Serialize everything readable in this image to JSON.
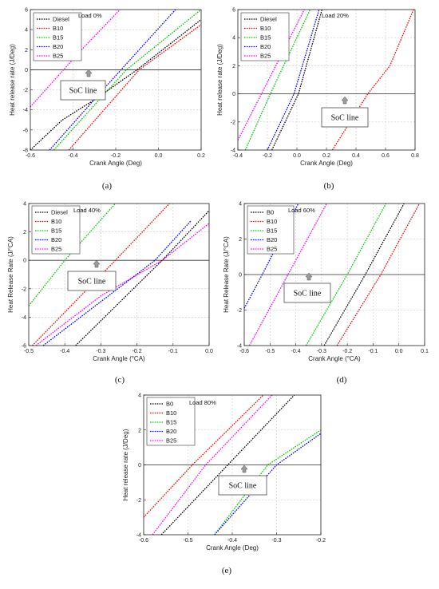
{
  "chart_data": [
    {
      "type": "line",
      "panel": "(a)",
      "title": "",
      "annotation": "Load 0%",
      "xlabel": "Crank Angle (Deg)",
      "ylabel": "Heat release rate (J/Deg)",
      "xlim": [
        -0.6,
        0.2
      ],
      "ylim": [
        -8,
        6
      ],
      "xticks": [
        -0.6,
        -0.4,
        -0.2,
        0.0,
        0.2
      ],
      "yticks": [
        -8,
        -6,
        -4,
        -2,
        0,
        2,
        4,
        6
      ],
      "xticklabels": [
        "-0.6",
        "-0.4",
        "-0.2",
        "0.0",
        "0.2"
      ],
      "yticklabels": [
        "-8",
        "-6",
        "-4",
        "-2",
        "0",
        "2",
        "4",
        "6"
      ],
      "grid": true,
      "legend": "top-left",
      "soc_label": "SoC line",
      "series": [
        {
          "name": "Diesel",
          "color": "#000000",
          "x": [
            -0.6,
            -0.45,
            -0.3,
            -0.1,
            0.2
          ],
          "y": [
            -8.0,
            -5.0,
            -3.0,
            0.0,
            5.0
          ]
        },
        {
          "name": "B10",
          "color": "#ff0000",
          "x": [
            -0.42,
            -0.09,
            0.2
          ],
          "y": [
            -8.0,
            0.0,
            4.5
          ]
        },
        {
          "name": "B15",
          "color": "#00cc00",
          "x": [
            -0.49,
            -0.15,
            0.2
          ],
          "y": [
            -8.0,
            0.0,
            6.0
          ]
        },
        {
          "name": "B20",
          "color": "#0000ff",
          "x": [
            -0.51,
            -0.26,
            0.08
          ],
          "y": [
            -8.0,
            -2.0,
            6.0
          ]
        },
        {
          "name": "B25",
          "color": "#ff00ff",
          "x": [
            -0.6,
            -0.36,
            -0.18
          ],
          "y": [
            -3.7,
            2.0,
            6.0
          ]
        }
      ]
    },
    {
      "type": "line",
      "panel": "(b)",
      "title": "",
      "annotation": "Load 20%",
      "xlabel": "Crank Angle (Deg)",
      "ylabel": "Heat release rate (J/Deg)",
      "xlim": [
        -0.4,
        0.8
      ],
      "ylim": [
        -4,
        6
      ],
      "xticks": [
        -0.4,
        -0.2,
        0.0,
        0.2,
        0.4,
        0.6,
        0.8
      ],
      "yticks": [
        -4,
        -2,
        0,
        2,
        4,
        6
      ],
      "xticklabels": [
        "-0.4",
        "-0.2",
        "0.0",
        "0.2",
        "0.4",
        "0.6",
        "0.8"
      ],
      "yticklabels": [
        "-4",
        "-2",
        "0",
        "2",
        "4",
        "6"
      ],
      "grid": true,
      "legend": "top-left",
      "soc_label": "SoC line",
      "series": [
        {
          "name": "Diesel",
          "color": "#000000",
          "x": [
            -0.17,
            0.01,
            0.17
          ],
          "y": [
            -4.0,
            0.0,
            6.0
          ]
        },
        {
          "name": "B10",
          "color": "#ff0000",
          "x": [
            0.24,
            0.48,
            0.63,
            0.79
          ],
          "y": [
            -4.0,
            0.0,
            2.0,
            6.0
          ]
        },
        {
          "name": "B15",
          "color": "#00cc00",
          "x": [
            -0.35,
            -0.18,
            0.09
          ],
          "y": [
            -4.0,
            0.0,
            6.0
          ]
        },
        {
          "name": "B20",
          "color": "#0000ff",
          "x": [
            -0.2,
            -0.02,
            0.15
          ],
          "y": [
            -4.0,
            0.0,
            6.0
          ]
        },
        {
          "name": "B25",
          "color": "#ff00ff",
          "x": [
            -0.4,
            -0.24,
            0.05
          ],
          "y": [
            -3.3,
            0.0,
            6.0
          ]
        }
      ]
    },
    {
      "type": "line",
      "panel": "(c)",
      "title": "",
      "annotation": "Load 40%",
      "xlabel": "Crank Angle (°CA)",
      "ylabel": "Heat Release Rate (J/°CA)",
      "xlim": [
        -0.5,
        0.0
      ],
      "ylim": [
        -6,
        4
      ],
      "xticks": [
        -0.5,
        -0.4,
        -0.3,
        -0.2,
        -0.1,
        0.0
      ],
      "yticks": [
        -6,
        -4,
        -2,
        0,
        2,
        4
      ],
      "xticklabels": [
        "-0.5",
        "-0.4",
        "-0.3",
        "-0.2",
        "-0.1",
        "0.0"
      ],
      "yticklabels": [
        "-6",
        "-4",
        "-2",
        "0",
        "2",
        "4"
      ],
      "grid": true,
      "legend": "top-left",
      "soc_label": "SoC line",
      "series": [
        {
          "name": "Diesel",
          "color": "#000000",
          "x": [
            -0.37,
            -0.13,
            0.0
          ],
          "y": [
            -6.0,
            0.0,
            3.5
          ]
        },
        {
          "name": "B10",
          "color": "#ff0000",
          "x": [
            -0.49,
            -0.26,
            -0.11
          ],
          "y": [
            -6.0,
            0.0,
            4.0
          ]
        },
        {
          "name": "B15",
          "color": "#00cc00",
          "x": [
            -0.5,
            -0.4,
            -0.26
          ],
          "y": [
            -3.2,
            0.0,
            4.0
          ]
        },
        {
          "name": "B20",
          "color": "#0000ff",
          "x": [
            -0.46,
            -0.15,
            -0.05
          ],
          "y": [
            -6.0,
            0.0,
            2.8
          ]
        },
        {
          "name": "B25",
          "color": "#ff00ff",
          "x": [
            -0.48,
            -0.3,
            -0.13,
            0.0
          ],
          "y": [
            -6.0,
            -2.5,
            0.0,
            2.6
          ]
        }
      ]
    },
    {
      "type": "line",
      "panel": "(d)",
      "title": "",
      "annotation": "Load 60%",
      "xlabel": "Crank Angle (°CA)",
      "ylabel": "Heat Release Rate (J/°CA)",
      "xlim": [
        -0.6,
        0.1
      ],
      "ylim": [
        -4,
        4
      ],
      "xticks": [
        -0.6,
        -0.5,
        -0.4,
        -0.3,
        -0.2,
        -0.1,
        0.0,
        0.1
      ],
      "yticks": [
        -4,
        -2,
        0,
        2,
        4
      ],
      "xticklabels": [
        "-0.6",
        "-0.5",
        "-0.4",
        "-0.3",
        "-0.2",
        "-0.1",
        "0.0",
        "0.1"
      ],
      "yticklabels": [
        "-4",
        "-2",
        "0",
        "2",
        "4"
      ],
      "grid": true,
      "legend": "top-left",
      "soc_label": "SoC line",
      "series": [
        {
          "name": "B0",
          "color": "#000000",
          "x": [
            -0.29,
            -0.13,
            0.02
          ],
          "y": [
            -4.0,
            0.0,
            4.0
          ]
        },
        {
          "name": "B10",
          "color": "#ff0000",
          "x": [
            -0.24,
            -0.07,
            0.08
          ],
          "y": [
            -4.0,
            0.0,
            4.0
          ]
        },
        {
          "name": "B15",
          "color": "#00cc00",
          "x": [
            -0.36,
            -0.2,
            -0.05
          ],
          "y": [
            -4.0,
            0.0,
            4.0
          ]
        },
        {
          "name": "B20",
          "color": "#0000ff",
          "x": [
            -0.6,
            -0.53,
            -0.39
          ],
          "y": [
            -1.9,
            0.0,
            4.0
          ]
        },
        {
          "name": "B25",
          "color": "#ff00ff",
          "x": [
            -0.58,
            -0.43,
            -0.28
          ],
          "y": [
            -4.0,
            0.0,
            4.0
          ]
        }
      ]
    },
    {
      "type": "line",
      "panel": "(e)",
      "title": "",
      "annotation": "Load 80%",
      "xlabel": "Crank Angle (Deg)",
      "ylabel": "Heat release rate (J/Deg)",
      "xlim": [
        -0.6,
        -0.2
      ],
      "ylim": [
        -4,
        4
      ],
      "xticks": [
        -0.6,
        -0.5,
        -0.4,
        -0.3,
        -0.2
      ],
      "yticks": [
        -4,
        -2,
        0,
        2,
        4
      ],
      "xticklabels": [
        "-0.6",
        "-0.5",
        "-0.4",
        "-0.3",
        "-0.2"
      ],
      "yticklabels": [
        "-4",
        "-2",
        "0",
        "2",
        "4"
      ],
      "grid": true,
      "legend": "top-left",
      "soc_label": "SoC line",
      "series": [
        {
          "name": "B0",
          "color": "#000000",
          "x": [
            -0.56,
            -0.41,
            -0.26
          ],
          "y": [
            -4.0,
            0.0,
            4.0
          ]
        },
        {
          "name": "B10",
          "color": "#ff0000",
          "x": [
            -0.6,
            -0.49,
            -0.33
          ],
          "y": [
            -3.0,
            0.0,
            4.0
          ]
        },
        {
          "name": "B15",
          "color": "#00cc00",
          "x": [
            -0.44,
            -0.32,
            -0.2
          ],
          "y": [
            -4.0,
            0.0,
            2.0
          ]
        },
        {
          "name": "B20",
          "color": "#0000ff",
          "x": [
            -0.44,
            -0.3,
            -0.2
          ],
          "y": [
            -4.0,
            0.0,
            1.8
          ]
        },
        {
          "name": "B25",
          "color": "#ff00ff",
          "x": [
            -0.58,
            -0.46,
            -0.31
          ],
          "y": [
            -4.0,
            0.0,
            4.0
          ]
        }
      ]
    }
  ]
}
